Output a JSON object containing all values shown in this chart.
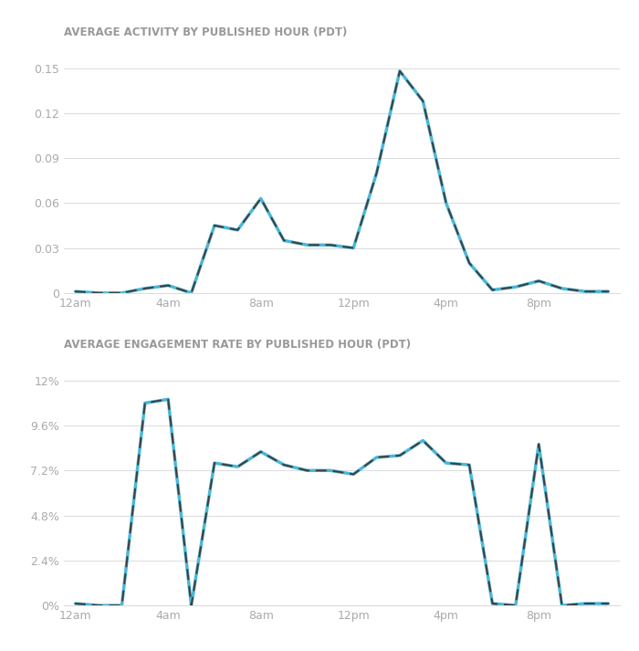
{
  "title1": "AVERAGE ACTIVITY BY PUBLISHED HOUR (PDT)",
  "title2": "AVERAGE ENGAGEMENT RATE BY PUBLISHED HOUR (PDT)",
  "hours": [
    0,
    1,
    2,
    3,
    4,
    5,
    6,
    7,
    8,
    9,
    10,
    11,
    12,
    13,
    14,
    15,
    16,
    17,
    18,
    19,
    20,
    21,
    22,
    23
  ],
  "activity": [
    0.001,
    0.0,
    0.0,
    0.003,
    0.005,
    0.0,
    0.045,
    0.042,
    0.063,
    0.035,
    0.032,
    0.032,
    0.03,
    0.08,
    0.148,
    0.128,
    0.06,
    0.02,
    0.002,
    0.004,
    0.008,
    0.003,
    0.001,
    0.001
  ],
  "engagement": [
    0.001,
    0.0,
    0.0,
    0.108,
    0.11,
    0.0,
    0.076,
    0.074,
    0.082,
    0.075,
    0.072,
    0.072,
    0.07,
    0.079,
    0.08,
    0.088,
    0.076,
    0.075,
    0.001,
    0.0,
    0.086,
    0.0,
    0.001,
    0.001
  ],
  "xtick_positions": [
    0,
    4,
    8,
    12,
    16,
    20
  ],
  "xtick_labels": [
    "12am",
    "4am",
    "8am",
    "12pm",
    "4pm",
    "8pm"
  ],
  "activity_yticks": [
    0,
    0.03,
    0.06,
    0.09,
    0.12,
    0.15
  ],
  "activity_ytick_labels": [
    "0",
    "0.03",
    "0.06",
    "0.09",
    "0.12",
    "0.15"
  ],
  "engagement_yticks": [
    0,
    0.024,
    0.048,
    0.072,
    0.096,
    0.12
  ],
  "engagement_ytick_labels": [
    "0%",
    "2.4%",
    "4.8%",
    "7.2%",
    "9.6%",
    "12%"
  ],
  "line_color_dark": "#404040",
  "line_color_light": "#4ab8d8",
  "bg_color": "#ffffff",
  "plot_bg_color": "#ffffff",
  "title_color": "#999999",
  "title_fontsize": 8.5,
  "tick_fontsize": 9,
  "tick_color": "#aaaaaa",
  "grid_color": "#dddddd"
}
